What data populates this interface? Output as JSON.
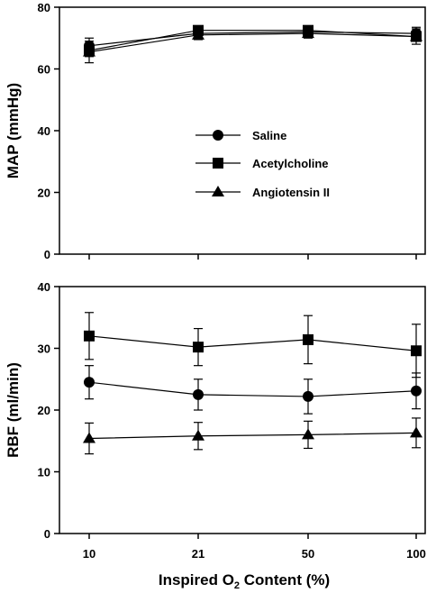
{
  "chart_data": [
    {
      "type": "line",
      "ylabel": "MAP (mmHg)",
      "xlabel": "",
      "categories": [
        "10",
        "21",
        "50",
        "100"
      ],
      "ylim": [
        0,
        80
      ],
      "yticks": [
        "0",
        "20",
        "40",
        "60",
        "80"
      ],
      "grid": false,
      "legend_position": "center",
      "series": [
        {
          "name": "Saline",
          "marker": "circle",
          "values": [
            67.5,
            71.5,
            72.0,
            71.5
          ],
          "errors": [
            2.5,
            1.5,
            1.5,
            2.0
          ]
        },
        {
          "name": "Acetylcholine",
          "marker": "square",
          "values": [
            66.0,
            72.5,
            72.5,
            70.5
          ],
          "errors": [
            2.0,
            1.5,
            1.5,
            2.5
          ]
        },
        {
          "name": "Angiotensin II",
          "marker": "triangle",
          "values": [
            65.5,
            71.0,
            71.5,
            70.5
          ],
          "errors": [
            3.5,
            1.5,
            1.5,
            1.5
          ]
        }
      ]
    },
    {
      "type": "line",
      "ylabel": "RBF (ml/min)",
      "xlabel_parts": [
        "Inspired O",
        "2",
        " Content (%)"
      ],
      "categories": [
        "10",
        "21",
        "50",
        "100"
      ],
      "ylim": [
        0,
        40
      ],
      "yticks": [
        "0",
        "10",
        "20",
        "30",
        "40"
      ],
      "grid": false,
      "series": [
        {
          "name": "Saline",
          "marker": "circle",
          "values": [
            24.5,
            22.5,
            22.2,
            23.1
          ],
          "errors": [
            2.7,
            2.5,
            2.8,
            2.9
          ]
        },
        {
          "name": "Acetylcholine",
          "marker": "square",
          "values": [
            32.0,
            30.2,
            31.4,
            29.6
          ],
          "errors": [
            3.8,
            3.0,
            3.9,
            4.3
          ]
        },
        {
          "name": "Angiotensin II",
          "marker": "triangle",
          "values": [
            15.4,
            15.8,
            16.0,
            16.3
          ],
          "errors": [
            2.5,
            2.2,
            2.2,
            2.4
          ]
        }
      ]
    }
  ]
}
